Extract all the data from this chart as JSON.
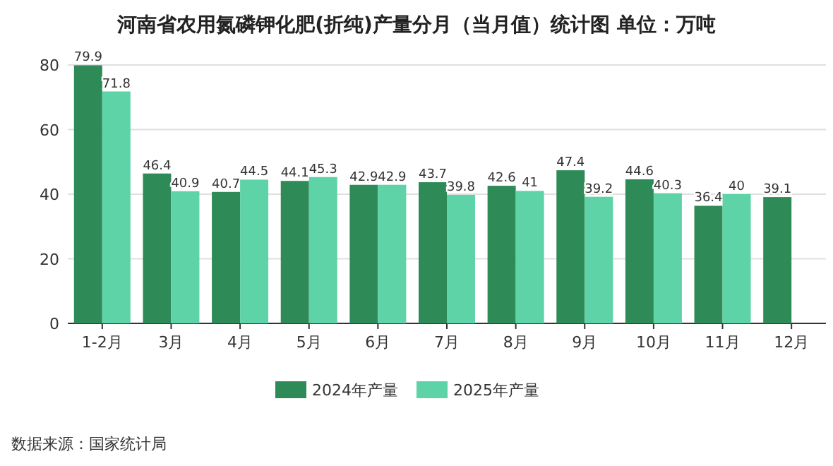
{
  "chart_data": {
    "type": "bar",
    "title": "河南省农用氮磷钾化肥(折纯)产量分月（当月值）统计图 单位：万吨",
    "categories": [
      "1-2月",
      "3月",
      "4月",
      "5月",
      "6月",
      "7月",
      "8月",
      "9月",
      "10月",
      "11月",
      "12月"
    ],
    "series": [
      {
        "name": "2024年产量",
        "color": "#2e8b57",
        "values": [
          79.9,
          46.4,
          40.7,
          44.1,
          42.9,
          43.7,
          42.6,
          47.4,
          44.6,
          36.4,
          39.1
        ]
      },
      {
        "name": "2025年产量",
        "color": "#5fd3a8",
        "values": [
          71.8,
          40.9,
          44.5,
          45.3,
          42.9,
          39.8,
          41,
          39.2,
          40.3,
          40,
          null
        ]
      }
    ],
    "ylim": [
      0,
      80
    ],
    "yticks": [
      0,
      20,
      40,
      60,
      80
    ],
    "grid": "y",
    "legend": "bottom",
    "data_labels": true,
    "annotations": [
      "数据来源：国家统计局"
    ]
  }
}
